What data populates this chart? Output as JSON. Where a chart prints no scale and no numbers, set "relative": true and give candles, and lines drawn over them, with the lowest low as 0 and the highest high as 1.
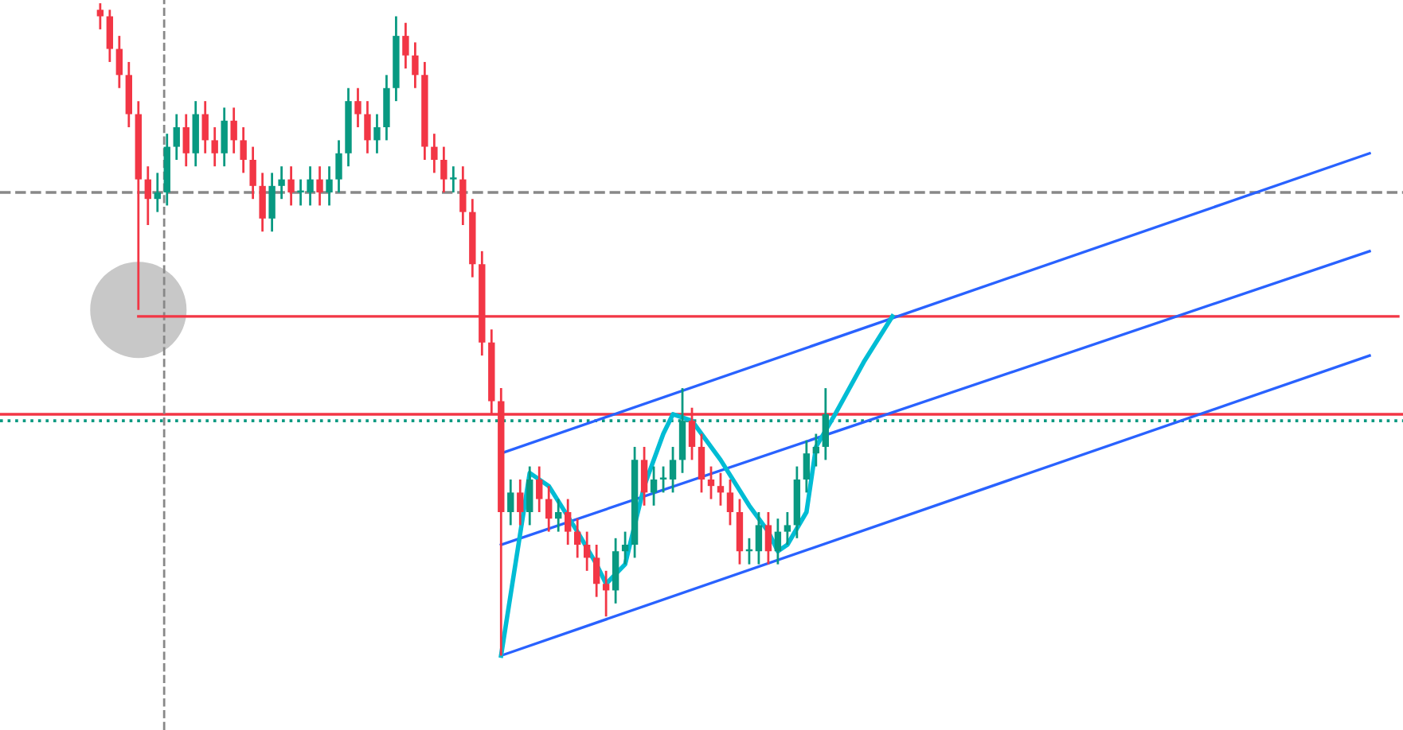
{
  "chart_data": {
    "type": "candlestick",
    "relative": true,
    "categories": [
      null,
      null,
      null,
      null,
      null,
      null,
      null,
      null,
      null,
      null,
      null,
      null,
      null,
      null,
      null,
      null,
      null,
      null,
      null,
      null,
      null,
      null,
      null,
      null,
      null,
      null,
      null,
      null,
      null,
      null,
      null,
      null,
      null,
      null,
      null,
      null,
      null,
      null,
      null,
      null,
      null,
      null,
      null,
      null,
      null,
      null,
      null,
      null,
      null,
      null,
      null,
      null,
      null,
      null,
      null,
      null,
      null,
      null,
      null,
      null,
      null,
      null,
      null,
      null,
      null,
      null,
      null,
      null,
      null,
      null,
      null,
      null,
      null,
      null,
      null,
      null,
      null,
      null,
      null,
      null,
      null,
      null,
      null,
      null,
      null,
      null,
      null,
      null,
      null,
      null,
      null,
      null,
      null,
      null,
      null,
      null,
      null,
      null,
      null,
      null,
      null,
      null,
      null,
      null,
      null,
      null,
      null,
      null,
      null,
      null,
      null,
      null,
      null,
      null,
      null,
      null,
      null,
      null,
      null,
      null,
      null,
      null,
      null,
      null,
      null,
      null,
      null,
      null,
      null,
      null,
      null,
      null,
      null,
      null,
      null,
      null,
      null,
      null,
      null,
      null,
      null,
      null,
      null,
      null,
      null,
      null,
      null
    ],
    "ohlc": [
      null,
      null,
      null,
      null,
      null,
      null,
      null,
      null,
      null,
      null,
      [
        0.99,
        1.0,
        0.96,
        0.98
      ],
      [
        0.98,
        0.99,
        0.91,
        0.93
      ],
      [
        0.93,
        0.95,
        0.87,
        0.89
      ],
      [
        0.89,
        0.91,
        0.81,
        0.83
      ],
      [
        0.83,
        0.85,
        0.53,
        0.73
      ],
      [
        0.73,
        0.75,
        0.66,
        0.7
      ],
      [
        0.7,
        0.74,
        0.68,
        0.71
      ],
      [
        0.71,
        0.8,
        0.69,
        0.78
      ],
      [
        0.78,
        0.83,
        0.76,
        0.81
      ],
      [
        0.81,
        0.83,
        0.75,
        0.77
      ],
      [
        0.77,
        0.85,
        0.75,
        0.83
      ],
      [
        0.83,
        0.85,
        0.77,
        0.79
      ],
      [
        0.79,
        0.81,
        0.75,
        0.77
      ],
      [
        0.77,
        0.84,
        0.75,
        0.82
      ],
      [
        0.82,
        0.84,
        0.77,
        0.79
      ],
      [
        0.79,
        0.81,
        0.74,
        0.76
      ],
      [
        0.76,
        0.78,
        0.7,
        0.72
      ],
      [
        0.72,
        0.74,
        0.65,
        0.67
      ],
      [
        0.67,
        0.74,
        0.65,
        0.72
      ],
      [
        0.72,
        0.75,
        0.7,
        0.73
      ],
      [
        0.73,
        0.75,
        0.69,
        0.71
      ],
      [
        0.71,
        0.73,
        0.69,
        0.71
      ],
      [
        0.71,
        0.75,
        0.69,
        0.73
      ],
      [
        0.73,
        0.75,
        0.69,
        0.71
      ],
      [
        0.71,
        0.75,
        0.69,
        0.73
      ],
      [
        0.73,
        0.79,
        0.71,
        0.77
      ],
      [
        0.77,
        0.87,
        0.75,
        0.85
      ],
      [
        0.85,
        0.87,
        0.81,
        0.83
      ],
      [
        0.83,
        0.85,
        0.77,
        0.79
      ],
      [
        0.79,
        0.83,
        0.77,
        0.81
      ],
      [
        0.81,
        0.89,
        0.79,
        0.87
      ],
      [
        0.87,
        0.98,
        0.85,
        0.95
      ],
      [
        0.95,
        0.97,
        0.9,
        0.92
      ],
      [
        0.92,
        0.94,
        0.87,
        0.89
      ],
      [
        0.89,
        0.91,
        0.76,
        0.78
      ],
      [
        0.78,
        0.8,
        0.74,
        0.76
      ],
      [
        0.76,
        0.78,
        0.71,
        0.73
      ],
      [
        0.73,
        0.75,
        0.71,
        0.73
      ],
      [
        0.73,
        0.75,
        0.66,
        0.68
      ],
      [
        0.68,
        0.7,
        0.58,
        0.6
      ],
      [
        0.6,
        0.62,
        0.46,
        0.48
      ],
      [
        0.48,
        0.5,
        0.37,
        0.39
      ],
      [
        0.39,
        0.41,
        0.0,
        0.22
      ],
      [
        0.22,
        0.27,
        0.2,
        0.25
      ],
      [
        0.25,
        0.27,
        0.2,
        0.22
      ],
      [
        0.22,
        0.29,
        0.2,
        0.27
      ],
      [
        0.27,
        0.29,
        0.22,
        0.24
      ],
      [
        0.24,
        0.26,
        0.19,
        0.21
      ],
      [
        0.21,
        0.24,
        0.19,
        0.22
      ],
      [
        0.22,
        0.24,
        0.17,
        0.19
      ],
      [
        0.19,
        0.21,
        0.15,
        0.17
      ],
      [
        0.17,
        0.19,
        0.13,
        0.15
      ],
      [
        0.15,
        0.17,
        0.09,
        0.11
      ],
      [
        0.11,
        0.13,
        0.06,
        0.1
      ],
      [
        0.1,
        0.18,
        0.08,
        0.16
      ],
      [
        0.16,
        0.19,
        0.14,
        0.17
      ],
      [
        0.17,
        0.32,
        0.15,
        0.3
      ],
      [
        0.3,
        0.32,
        0.23,
        0.25
      ],
      [
        0.25,
        0.29,
        0.23,
        0.27
      ],
      [
        0.27,
        0.29,
        0.25,
        0.27
      ],
      [
        0.27,
        0.32,
        0.25,
        0.3
      ],
      [
        0.3,
        0.41,
        0.28,
        0.36
      ],
      [
        0.36,
        0.38,
        0.3,
        0.32
      ],
      [
        0.32,
        0.34,
        0.25,
        0.27
      ],
      [
        0.27,
        0.29,
        0.24,
        0.26
      ],
      [
        0.26,
        0.28,
        0.23,
        0.25
      ],
      [
        0.25,
        0.27,
        0.2,
        0.22
      ],
      [
        0.22,
        0.24,
        0.14,
        0.16
      ],
      [
        0.16,
        0.18,
        0.14,
        0.16
      ],
      [
        0.16,
        0.22,
        0.14,
        0.2
      ],
      [
        0.2,
        0.22,
        0.14,
        0.16
      ],
      [
        0.16,
        0.21,
        0.14,
        0.19
      ],
      [
        0.19,
        0.22,
        0.17,
        0.2
      ],
      [
        0.2,
        0.29,
        0.18,
        0.27
      ],
      [
        0.27,
        0.33,
        0.25,
        0.31
      ],
      [
        0.31,
        0.34,
        0.29,
        0.32
      ],
      [
        0.32,
        0.41,
        0.3,
        0.37
      ],
      null,
      null,
      null,
      null,
      null,
      null,
      null,
      null,
      null,
      null,
      null,
      null,
      null,
      null,
      null,
      null,
      null,
      null,
      null,
      null,
      null,
      null,
      null,
      null,
      null,
      null,
      null,
      null,
      null,
      null,
      null,
      null,
      null,
      null,
      null,
      null,
      null,
      null,
      null,
      null,
      null,
      null,
      null,
      null,
      null,
      null,
      null,
      null,
      null,
      null,
      null,
      null,
      null,
      null,
      null,
      null,
      null,
      null,
      null,
      null
    ],
    "series": [
      {
        "type": "line",
        "color": "#f23645",
        "values": [
          null,
          null,
          null,
          null,
          null,
          null,
          null,
          null,
          null,
          null,
          null,
          null,
          null,
          null,
          0.52,
          null,
          null,
          null,
          null,
          null,
          null,
          null,
          null,
          null,
          null,
          null,
          null,
          null,
          null,
          null,
          null,
          null,
          null,
          null,
          null,
          null,
          null,
          null,
          null,
          null,
          null,
          null,
          null,
          null,
          null,
          null,
          null,
          null,
          null,
          null,
          null,
          null,
          null,
          null,
          null,
          null,
          null,
          null,
          null,
          null,
          null,
          null,
          null,
          null,
          null,
          null,
          null,
          null,
          null,
          null,
          null,
          null,
          null,
          null,
          null,
          null,
          null,
          null,
          null,
          null,
          null,
          null,
          null,
          null,
          null,
          null,
          null,
          null,
          null,
          null,
          null,
          null,
          null,
          null,
          null,
          null,
          null,
          null,
          null,
          null,
          null,
          null,
          null,
          null,
          null,
          null,
          null,
          null,
          null,
          null,
          null,
          null,
          null,
          null,
          null,
          null,
          null,
          null,
          null,
          null,
          null,
          null,
          null,
          null,
          null,
          null,
          null,
          null,
          null,
          null,
          null,
          null,
          null,
          null,
          null,
          null,
          null,
          null,
          null,
          null,
          null,
          null,
          null,
          null,
          null,
          null,
          0.52
        ]
      },
      {
        "type": "line",
        "color": "#2962ff",
        "values": [
          null,
          null,
          null,
          null,
          null,
          null,
          null,
          null,
          null,
          null,
          null,
          null,
          null,
          null,
          null,
          null,
          null,
          null,
          null,
          null,
          null,
          null,
          null,
          null,
          null,
          null,
          null,
          null,
          null,
          null,
          null,
          null,
          null,
          null,
          null,
          null,
          null,
          null,
          null,
          null,
          null,
          null,
          null,
          null,
          null,
          null,
          null,
          null,
          null,
          null,
          null,
          null,
          0.31,
          null,
          null,
          null,
          null,
          null,
          null,
          null,
          null,
          null,
          null,
          null,
          null,
          null,
          null,
          null,
          null,
          null,
          null,
          null,
          null,
          null,
          null,
          null,
          null,
          null,
          null,
          null,
          null,
          null,
          null,
          null,
          null,
          null,
          null,
          null,
          null,
          null,
          null,
          null,
          null,
          null,
          null,
          null,
          null,
          null,
          null,
          null,
          null,
          null,
          null,
          null,
          null,
          null,
          null,
          null,
          null,
          null,
          null,
          null,
          null,
          null,
          null,
          null,
          null,
          null,
          null,
          null,
          null,
          null,
          null,
          null,
          null,
          null,
          null,
          null,
          null,
          null,
          null,
          null,
          null,
          null,
          null,
          null,
          null,
          null,
          null,
          null,
          null,
          null,
          null,
          0.77,
          null,
          null,
          null
        ]
      },
      {
        "type": "line",
        "color": "#2962ff",
        "values": [
          null,
          null,
          null,
          null,
          null,
          null,
          null,
          null,
          null,
          null,
          null,
          null,
          null,
          null,
          null,
          null,
          null,
          null,
          null,
          null,
          null,
          null,
          null,
          null,
          null,
          null,
          null,
          null,
          null,
          null,
          null,
          null,
          null,
          null,
          null,
          null,
          null,
          null,
          null,
          null,
          null,
          null,
          null,
          null,
          null,
          null,
          null,
          null,
          null,
          null,
          null,
          null,
          0.17,
          null,
          null,
          null,
          null,
          null,
          null,
          null,
          null,
          null,
          null,
          null,
          null,
          null,
          null,
          null,
          null,
          null,
          null,
          null,
          null,
          null,
          null,
          null,
          null,
          null,
          null,
          null,
          null,
          null,
          null,
          null,
          null,
          null,
          null,
          null,
          null,
          null,
          null,
          null,
          null,
          null,
          null,
          null,
          null,
          null,
          null,
          null,
          null,
          null,
          null,
          null,
          null,
          null,
          null,
          null,
          null,
          null,
          null,
          null,
          null,
          null,
          null,
          null,
          null,
          null,
          null,
          null,
          null,
          null,
          null,
          null,
          null,
          null,
          null,
          null,
          null,
          null,
          null,
          null,
          null,
          null,
          null,
          null,
          null,
          null,
          null,
          null,
          null,
          null,
          null,
          0.62,
          null,
          null,
          null
        ]
      },
      {
        "type": "line",
        "color": "#2962ff",
        "values": [
          null,
          null,
          null,
          null,
          null,
          null,
          null,
          null,
          null,
          null,
          null,
          null,
          null,
          null,
          null,
          null,
          null,
          null,
          null,
          null,
          null,
          null,
          null,
          null,
          null,
          null,
          null,
          null,
          null,
          null,
          null,
          null,
          null,
          null,
          null,
          null,
          null,
          null,
          null,
          null,
          null,
          null,
          null,
          null,
          null,
          null,
          null,
          null,
          null,
          null,
          null,
          null,
          0.0,
          null,
          null,
          null,
          null,
          null,
          null,
          null,
          null,
          null,
          null,
          null,
          null,
          null,
          null,
          null,
          null,
          null,
          null,
          null,
          null,
          null,
          null,
          null,
          null,
          null,
          null,
          null,
          null,
          null,
          null,
          null,
          null,
          null,
          null,
          null,
          null,
          null,
          null,
          null,
          null,
          null,
          null,
          null,
          null,
          null,
          null,
          null,
          null,
          null,
          null,
          null,
          null,
          null,
          null,
          null,
          null,
          null,
          null,
          null,
          null,
          null,
          null,
          null,
          null,
          null,
          null,
          null,
          null,
          null,
          null,
          null,
          null,
          null,
          null,
          null,
          null,
          null,
          null,
          null,
          null,
          null,
          null,
          null,
          null,
          null,
          null,
          null,
          null,
          null,
          null,
          0.46,
          null,
          null,
          null
        ]
      },
      {
        "type": "line",
        "color": "#00bcd4",
        "values": [
          null,
          null,
          null,
          null,
          null,
          null,
          null,
          null,
          null,
          null,
          null,
          null,
          null,
          null,
          null,
          null,
          null,
          null,
          null,
          null,
          null,
          null,
          null,
          null,
          null,
          null,
          null,
          null,
          null,
          null,
          null,
          null,
          null,
          null,
          null,
          null,
          null,
          null,
          null,
          null,
          null,
          null,
          null,
          null,
          null,
          null,
          null,
          null,
          null,
          null,
          null,
          null,
          0.0,
          null,
          null,
          0.28,
          null,
          0.26,
          null,
          null,
          0.19,
          null,
          0.14,
          0.11,
          null,
          0.14,
          null,
          0.26,
          null,
          0.34,
          0.37,
          null,
          0.36,
          null,
          null,
          0.3,
          null,
          null,
          0.23,
          null,
          0.19,
          0.16,
          0.17,
          null,
          0.22,
          0.32,
          null,
          0.37,
          null,
          null,
          0.45,
          null,
          null,
          0.52,
          null,
          null,
          null,
          null,
          null,
          null,
          null,
          null,
          null,
          null,
          null,
          null,
          null,
          null,
          null,
          null,
          null,
          null,
          null,
          null,
          null,
          null,
          null,
          null,
          null,
          null,
          null,
          null,
          null,
          null,
          null,
          null,
          null,
          null,
          null,
          null,
          null,
          null,
          null,
          null,
          null,
          null,
          null,
          null,
          null,
          null,
          null,
          null,
          null,
          null,
          null,
          null,
          null
        ]
      },
      {
        "type": "scatter",
        "color": "#c8c8c8",
        "values": [
          null,
          null,
          null,
          null,
          null,
          null,
          null,
          null,
          null,
          null,
          null,
          null,
          null,
          null,
          0.53,
          null,
          null,
          null,
          null,
          null,
          null,
          null,
          null,
          null,
          null,
          null,
          null,
          null,
          null,
          null,
          null,
          null,
          null,
          null,
          null,
          null,
          null,
          null,
          null,
          null,
          null,
          null,
          null,
          null,
          null,
          null,
          null,
          null,
          null,
          null,
          null,
          null,
          null,
          null,
          null,
          null,
          null,
          null,
          null,
          null,
          null,
          null,
          null,
          null,
          null,
          null,
          null,
          null,
          null,
          null,
          null,
          null,
          null,
          null,
          null,
          null,
          null,
          null,
          null,
          null,
          null,
          null,
          null,
          null,
          null,
          null,
          null,
          null,
          null,
          null,
          null,
          null,
          null,
          null,
          null,
          null,
          null,
          null,
          null,
          null,
          null,
          null,
          null,
          null,
          null,
          null,
          null,
          null,
          null,
          null,
          null,
          null,
          null,
          null,
          null,
          null,
          null,
          null,
          null,
          null,
          null,
          null,
          null,
          null,
          null,
          null,
          null,
          null,
          null,
          null,
          null,
          null,
          null,
          null,
          null,
          null,
          null,
          null,
          null,
          null,
          null,
          null,
          null,
          null,
          null,
          null,
          null
        ]
      }
    ],
    "ref_lines": [
      {
        "axis": "y",
        "value": 0.71,
        "color": "#888888",
        "line_style": "dashed"
      },
      {
        "axis": "y",
        "value": 0.37,
        "color": "#f23645",
        "line_style": "solid"
      },
      {
        "axis": "y",
        "value": 0.36,
        "color": "#089981",
        "line_style": "dotted"
      }
    ]
  }
}
